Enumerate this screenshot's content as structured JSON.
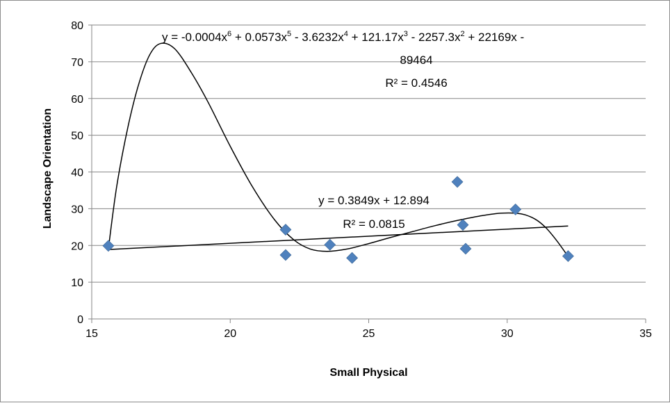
{
  "chart_data": {
    "type": "scatter",
    "title": "",
    "xlabel": "Small Physical",
    "ylabel": "Landscape Orientation",
    "xlim": [
      15,
      35
    ],
    "ylim": [
      0,
      80
    ],
    "x_ticks": [
      "15",
      "20",
      "25",
      "30",
      "35"
    ],
    "y_ticks": [
      "0",
      "10",
      "20",
      "30",
      "40",
      "50",
      "60",
      "70",
      "80"
    ],
    "grid": "horizontal",
    "legend": "none",
    "marker": "diamond",
    "marker_color": "#4F81BD",
    "series": [
      {
        "points": [
          {
            "x": 15.6,
            "y": 19.9
          },
          {
            "x": 22.0,
            "y": 24.3
          },
          {
            "x": 22.0,
            "y": 17.4
          },
          {
            "x": 23.6,
            "y": 20.2
          },
          {
            "x": 24.4,
            "y": 16.6
          },
          {
            "x": 28.2,
            "y": 37.3
          },
          {
            "x": 28.4,
            "y": 25.6
          },
          {
            "x": 28.5,
            "y": 19.1
          },
          {
            "x": 30.3,
            "y": 29.8
          },
          {
            "x": 32.2,
            "y": 17.1
          }
        ]
      }
    ],
    "trendlines": [
      {
        "type": "linear",
        "equation": "y = 0.3849x + 12.894",
        "r2": "R² = 0.0815",
        "slope": 0.3849,
        "intercept": 12.894,
        "x_range": [
          15.6,
          32.2
        ]
      },
      {
        "type": "polynomial",
        "order": 6,
        "equation_parts": [
          "y = -0.0004x",
          "6",
          " + 0.0573x",
          "5",
          " - 3.6232x",
          "4",
          " + 121.17x",
          "3",
          " - 2257.3x",
          "2",
          " + 22169x -"
        ],
        "equation_line2": "89464",
        "r2": "R² = 0.4546",
        "x_range": [
          15.6,
          32.2
        ],
        "curve": [
          [
            15.6,
            19.0
          ],
          [
            15.9,
            36.0
          ],
          [
            16.3,
            52.0
          ],
          [
            16.7,
            64.0
          ],
          [
            17.1,
            72.0
          ],
          [
            17.5,
            75.0
          ],
          [
            18.0,
            73.5
          ],
          [
            18.6,
            67.0
          ],
          [
            19.2,
            59.0
          ],
          [
            20.0,
            47.0
          ],
          [
            20.8,
            36.0
          ],
          [
            21.6,
            27.0
          ],
          [
            22.3,
            21.5
          ],
          [
            22.9,
            19.0
          ],
          [
            23.5,
            18.4
          ],
          [
            24.2,
            19.0
          ],
          [
            25.0,
            20.5
          ],
          [
            25.8,
            22.2
          ],
          [
            26.6,
            23.8
          ],
          [
            27.4,
            25.4
          ],
          [
            28.2,
            26.8
          ],
          [
            29.0,
            28.0
          ],
          [
            29.8,
            28.8
          ],
          [
            30.5,
            28.6
          ],
          [
            31.0,
            27.2
          ],
          [
            31.4,
            24.8
          ],
          [
            31.8,
            21.2
          ],
          [
            32.2,
            17.0
          ]
        ]
      }
    ]
  }
}
